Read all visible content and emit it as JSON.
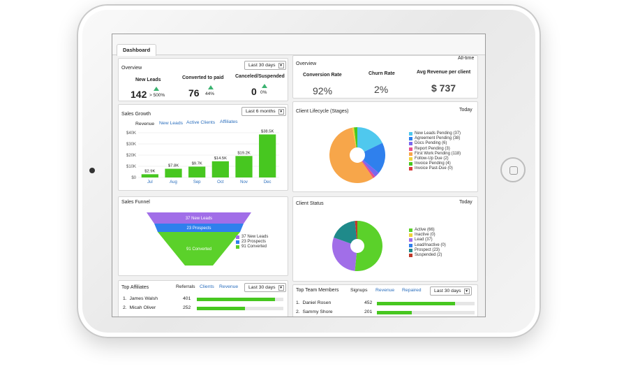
{
  "tab": "Dashboard",
  "overview_left": {
    "title": "Overview",
    "period": "Last 30 days",
    "metrics": [
      {
        "label": "New Leads",
        "value": "142",
        "change": "> 500%"
      },
      {
        "label": "Converted to paid",
        "value": "76",
        "change": "44%"
      },
      {
        "label": "Canceled/Suspended",
        "value": "0",
        "change": "0%"
      }
    ]
  },
  "overview_right": {
    "title": "Overview",
    "period": "All-time",
    "metrics": [
      {
        "label": "Conversion Rate",
        "value": "92%"
      },
      {
        "label": "Churn Rate",
        "value": "2%"
      },
      {
        "label": "Avg Revenue per client",
        "value": "$ 737"
      }
    ]
  },
  "sales_growth": {
    "title": "Sales Growth",
    "period": "Last 6 months",
    "tabs": [
      "Revenue",
      "New Leads",
      "Active Clients",
      "Affiliates"
    ],
    "chart_data": {
      "type": "bar",
      "categories": [
        "Jul",
        "Aug",
        "Sep",
        "Oct",
        "Nov",
        "Dec"
      ],
      "values": [
        2.9,
        7.8,
        9.7,
        14.5,
        19.2,
        38.5
      ],
      "data_labels": [
        "$2.9K",
        "$7.8K",
        "$9.7K",
        "$14.5K",
        "$19.2K",
        "$38.5K"
      ],
      "y_ticks": [
        "$0",
        "$10K",
        "$20K",
        "$30K",
        "$40K"
      ],
      "ylim": [
        0,
        40
      ],
      "color": "#47c720"
    }
  },
  "client_lifecycle": {
    "title": "Client Lifecycle (Stages)",
    "period": "Today",
    "chart_data": {
      "type": "pie",
      "labels": [
        "New Leads Pending (37)",
        "Agreement Pending (38)",
        "Docs Pending (6)",
        "Report Pending (3)",
        "First Work Pending (118)",
        "Follow-Up Due (2)",
        "Invoice Pending (4)",
        "Invoice Past-Due (0)"
      ],
      "values": [
        37,
        38,
        6,
        3,
        118,
        2,
        4,
        0
      ],
      "colors": [
        "#4fc8ee",
        "#2f80ed",
        "#7b68ee",
        "#e8508c",
        "#f7a64a",
        "#f0d23c",
        "#47c720",
        "#d93c3c"
      ]
    }
  },
  "sales_funnel": {
    "title": "Sales Funnel",
    "chart_data": {
      "type": "funnel",
      "labels": [
        "37 New Leads",
        "23 Prospects",
        "91 Converted"
      ],
      "values": [
        37,
        23,
        91
      ],
      "colors": [
        "#a16ee8",
        "#2f80ed",
        "#5bd12a"
      ]
    }
  },
  "client_status": {
    "title": "Client Status",
    "period": "Today",
    "chart_data": {
      "type": "pie",
      "labels": [
        "Active (66)",
        "Inactive (0)",
        "Lead (37)",
        "Lead/Inactive (0)",
        "Prospect (23)",
        "Suspended (2)"
      ],
      "values": [
        66,
        0,
        37,
        0,
        23,
        2
      ],
      "colors": [
        "#5bd12a",
        "#f0d23c",
        "#a16ee8",
        "#2f80ed",
        "#1f8a8a",
        "#c0392b"
      ]
    }
  },
  "top_affiliates": {
    "title": "Top Affiliates",
    "tabs": [
      "Referrals",
      "Clients",
      "Revenue"
    ],
    "period": "Last 30 days",
    "rows": [
      {
        "rank": "1.",
        "name": "James Walsh",
        "value": "401",
        "fraction": 0.9
      },
      {
        "rank": "2.",
        "name": "Micah Oliver",
        "value": "252",
        "fraction": 0.56
      }
    ]
  },
  "top_team": {
    "title": "Top Team Members",
    "tabs": [
      "Signups",
      "Revenue",
      "Repaired"
    ],
    "period": "Last 30 days",
    "rows": [
      {
        "rank": "1.",
        "name": "Daniel Rosen",
        "value": "452",
        "fraction": 0.8
      },
      {
        "rank": "2.",
        "name": "Sammy Shore",
        "value": "201",
        "fraction": 0.36
      }
    ]
  }
}
